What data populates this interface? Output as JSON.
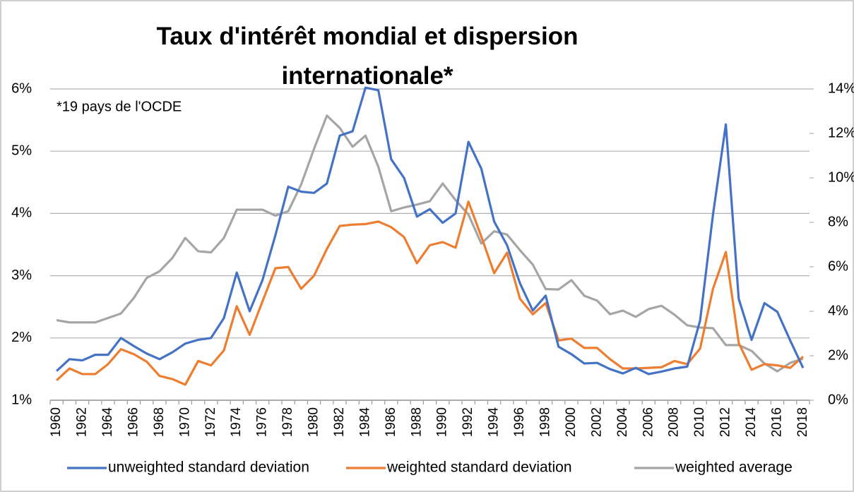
{
  "chart_data": {
    "type": "line",
    "title": "Taux d'intérêt mondial et dispersion internationale*",
    "annotation": "*19 pays de l'OCDE",
    "categories": [
      "1960",
      null,
      "1962",
      null,
      "1964",
      null,
      "1966",
      null,
      "1968",
      null,
      "1970",
      null,
      "1972",
      null,
      "1974",
      null,
      "1976",
      null,
      "1978",
      null,
      "1980",
      null,
      "1982",
      null,
      "1984",
      null,
      "1986",
      null,
      "1988",
      null,
      "1990",
      null,
      "1992",
      null,
      "1994",
      null,
      "1996",
      null,
      "1998",
      null,
      "2000",
      null,
      "2002",
      null,
      "2004",
      null,
      "2006",
      null,
      "2008",
      null,
      "2010",
      null,
      "2012",
      null,
      "2014",
      null,
      "2016",
      null,
      "2018"
    ],
    "series": [
      {
        "name": "unweighted standard deviation",
        "color": "#4472c4",
        "values": [
          1.47,
          1.66,
          1.64,
          1.73,
          1.73,
          2.0,
          1.87,
          1.75,
          1.66,
          1.77,
          1.91,
          1.97,
          2.0,
          2.32,
          3.05,
          2.43,
          2.93,
          3.65,
          4.43,
          4.35,
          4.33,
          4.48,
          5.25,
          5.32,
          6.02,
          5.98,
          4.87,
          4.57,
          3.95,
          4.07,
          3.85,
          4.0,
          5.15,
          4.72,
          3.87,
          3.49,
          2.88,
          2.44,
          2.68,
          1.86,
          1.74,
          1.59,
          1.6,
          1.5,
          1.43,
          1.52,
          1.42,
          1.46,
          1.51,
          1.54,
          2.28,
          3.98,
          5.43,
          2.63,
          1.97,
          2.56,
          2.42,
          1.96,
          1.52
        ]
      },
      {
        "name": "weighted standard deviation",
        "color": "#ed7d31",
        "values": [
          1.32,
          1.51,
          1.42,
          1.42,
          1.58,
          1.82,
          1.74,
          1.62,
          1.39,
          1.34,
          1.25,
          1.63,
          1.56,
          1.8,
          2.51,
          2.05,
          2.59,
          3.12,
          3.14,
          2.79,
          3.0,
          3.43,
          3.8,
          3.82,
          3.83,
          3.87,
          3.78,
          3.62,
          3.2,
          3.49,
          3.54,
          3.45,
          4.19,
          3.63,
          3.04,
          3.37,
          2.63,
          2.38,
          2.56,
          1.96,
          1.99,
          1.84,
          1.84,
          1.66,
          1.51,
          1.51,
          1.52,
          1.53,
          1.63,
          1.58,
          1.83,
          2.79,
          3.38,
          1.92,
          1.49,
          1.58,
          1.56,
          1.52,
          1.7
        ]
      },
      {
        "name": "weighted average",
        "color": "#a5a5a5",
        "axis": "y2",
        "values": [
          3.6,
          3.5,
          3.5,
          3.5,
          3.7,
          3.9,
          4.6,
          5.5,
          5.8,
          6.4,
          7.3,
          6.7,
          6.65,
          7.3,
          8.57,
          8.57,
          8.57,
          8.3,
          8.5,
          9.7,
          11.3,
          12.8,
          12.25,
          11.4,
          11.9,
          10.5,
          8.5,
          8.67,
          8.8,
          8.95,
          9.75,
          9.0,
          8.35,
          7.05,
          7.6,
          7.45,
          6.75,
          6.1,
          5.0,
          4.98,
          5.4,
          4.7,
          4.48,
          3.87,
          4.03,
          3.75,
          4.1,
          4.25,
          3.85,
          3.37,
          3.27,
          3.24,
          2.48,
          2.48,
          2.22,
          1.65,
          1.3,
          1.68,
          1.87
        ]
      }
    ],
    "ylim": [
      1,
      6
    ],
    "yticks": [
      {
        "value": 1,
        "label": "1%"
      },
      {
        "value": 2,
        "label": "2%"
      },
      {
        "value": 3,
        "label": "3%"
      },
      {
        "value": 4,
        "label": "4%"
      },
      {
        "value": 5,
        "label": "5%"
      },
      {
        "value": 6,
        "label": "6%"
      }
    ],
    "y2lim": [
      0,
      14
    ],
    "y2ticks": [
      {
        "value": 0,
        "label": "0%"
      },
      {
        "value": 2,
        "label": "2%"
      },
      {
        "value": 4,
        "label": "4%"
      },
      {
        "value": 6,
        "label": "6%"
      },
      {
        "value": 8,
        "label": "8%"
      },
      {
        "value": 10,
        "label": "10%"
      },
      {
        "value": 12,
        "label": "12%"
      },
      {
        "value": 14,
        "label": "14%"
      }
    ],
    "grid": true,
    "legend": "bottom"
  }
}
